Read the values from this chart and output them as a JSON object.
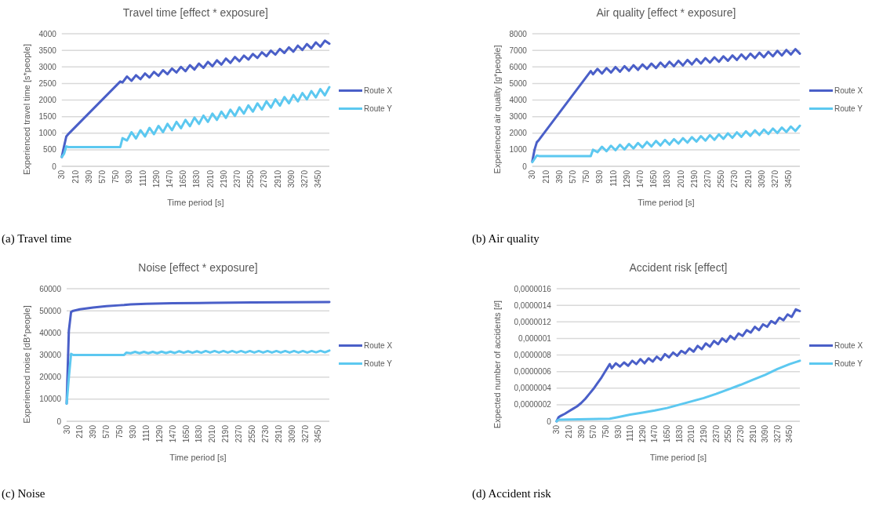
{
  "chart_data": [
    {
      "type": "line",
      "title": "Travel time [effect * exposure]",
      "xlabel": "Time period [s]",
      "ylabel": "Experienced travel time [s*people]",
      "annotations": [
        "(a) Travel time"
      ],
      "xlim": [
        30,
        3600
      ],
      "xticks": [
        30,
        210,
        390,
        570,
        750,
        930,
        1110,
        1290,
        1470,
        1650,
        1830,
        2010,
        2190,
        2370,
        2550,
        2730,
        2910,
        3090,
        3270,
        3450
      ],
      "ylim": [
        0,
        4000
      ],
      "yticks": [
        0,
        500,
        1000,
        1500,
        2000,
        2500,
        3000,
        3500,
        4000
      ],
      "grid": "y",
      "legend": "right",
      "series": [
        {
          "name": "Route X",
          "color": "#4a5fc8",
          "x": [
            30,
            60,
            90,
            120,
            810,
            840,
            900,
            960,
            1020,
            1080,
            1140,
            1200,
            1260,
            1320,
            1380,
            1440,
            1500,
            1560,
            1620,
            1680,
            1740,
            1800,
            1860,
            1920,
            1980,
            2040,
            2100,
            2160,
            2220,
            2280,
            2340,
            2400,
            2460,
            2520,
            2580,
            2640,
            2700,
            2760,
            2820,
            2880,
            2940,
            3000,
            3060,
            3120,
            3180,
            3240,
            3300,
            3360,
            3420,
            3480,
            3540,
            3600
          ],
          "values": [
            280,
            600,
            900,
            980,
            2560,
            2530,
            2710,
            2580,
            2750,
            2630,
            2800,
            2680,
            2850,
            2730,
            2900,
            2780,
            2950,
            2830,
            3000,
            2870,
            3050,
            2920,
            3100,
            2970,
            3150,
            3020,
            3200,
            3070,
            3250,
            3120,
            3300,
            3170,
            3340,
            3220,
            3390,
            3270,
            3440,
            3320,
            3490,
            3370,
            3540,
            3420,
            3590,
            3460,
            3640,
            3510,
            3690,
            3560,
            3740,
            3610,
            3790,
            3700
          ]
        },
        {
          "name": "Route Y",
          "color": "#5cc8f0",
          "x": [
            30,
            60,
            90,
            120,
            810,
            840,
            900,
            960,
            1020,
            1080,
            1140,
            1200,
            1260,
            1320,
            1380,
            1440,
            1500,
            1560,
            1620,
            1680,
            1740,
            1800,
            1860,
            1920,
            1980,
            2040,
            2100,
            2160,
            2220,
            2280,
            2340,
            2400,
            2460,
            2520,
            2580,
            2640,
            2700,
            2760,
            2820,
            2880,
            2940,
            3000,
            3060,
            3120,
            3180,
            3240,
            3300,
            3360,
            3420,
            3480,
            3540,
            3600
          ],
          "values": [
            280,
            380,
            600,
            580,
            580,
            850,
            780,
            1030,
            840,
            1090,
            900,
            1160,
            970,
            1220,
            1030,
            1280,
            1090,
            1340,
            1150,
            1400,
            1210,
            1470,
            1280,
            1530,
            1340,
            1590,
            1400,
            1650,
            1460,
            1710,
            1520,
            1780,
            1590,
            1840,
            1650,
            1900,
            1710,
            1960,
            1770,
            2020,
            1830,
            2090,
            1900,
            2150,
            1960,
            2210,
            2020,
            2270,
            2080,
            2330,
            2140,
            2390
          ]
        }
      ]
    },
    {
      "type": "line",
      "title": "Air quality [effect * exposure]",
      "xlabel": "Time period [s]",
      "ylabel": "Experienced air quality [g*people]",
      "annotations": [
        "(b) Air quality"
      ],
      "xlim": [
        30,
        3600
      ],
      "xticks": [
        30,
        210,
        390,
        570,
        750,
        930,
        1110,
        1290,
        1470,
        1650,
        1830,
        2010,
        2190,
        2370,
        2550,
        2730,
        2910,
        3090,
        3270,
        3450
      ],
      "ylim": [
        0,
        8000
      ],
      "yticks": [
        0,
        1000,
        2000,
        3000,
        4000,
        5000,
        6000,
        7000,
        8000
      ],
      "grid": "y",
      "legend": "right",
      "series": [
        {
          "name": "Route X",
          "color": "#4a5fc8",
          "x": [
            30,
            60,
            90,
            120,
            810,
            840,
            900,
            960,
            1020,
            1080,
            1140,
            1200,
            1260,
            1320,
            1380,
            1440,
            1500,
            1560,
            1620,
            1680,
            1740,
            1800,
            1860,
            1920,
            1980,
            2040,
            2100,
            2160,
            2220,
            2280,
            2340,
            2400,
            2460,
            2520,
            2580,
            2640,
            2700,
            2760,
            2820,
            2880,
            2940,
            3000,
            3060,
            3120,
            3180,
            3240,
            3300,
            3360,
            3420,
            3480,
            3540,
            3600
          ],
          "values": [
            300,
            1000,
            1450,
            1600,
            5750,
            5550,
            5880,
            5600,
            5930,
            5660,
            5990,
            5710,
            6040,
            5770,
            6100,
            5820,
            6150,
            5880,
            6200,
            5930,
            6260,
            5990,
            6310,
            6040,
            6370,
            6090,
            6420,
            6150,
            6480,
            6200,
            6530,
            6260,
            6580,
            6310,
            6640,
            6370,
            6690,
            6420,
            6750,
            6470,
            6800,
            6530,
            6860,
            6580,
            6910,
            6640,
            6970,
            6690,
            7020,
            6750,
            7070,
            6800
          ]
        },
        {
          "name": "Route Y",
          "color": "#5cc8f0",
          "x": [
            30,
            60,
            90,
            120,
            810,
            840,
            900,
            960,
            1020,
            1080,
            1140,
            1200,
            1260,
            1320,
            1380,
            1440,
            1500,
            1560,
            1620,
            1680,
            1740,
            1800,
            1860,
            1920,
            1980,
            2040,
            2100,
            2160,
            2220,
            2280,
            2340,
            2400,
            2460,
            2520,
            2580,
            2640,
            2700,
            2760,
            2820,
            2880,
            2940,
            3000,
            3060,
            3120,
            3180,
            3240,
            3300,
            3360,
            3420,
            3480,
            3540,
            3600
          ],
          "values": [
            250,
            450,
            650,
            620,
            620,
            1000,
            850,
            1180,
            910,
            1240,
            970,
            1300,
            1020,
            1350,
            1080,
            1410,
            1140,
            1470,
            1200,
            1530,
            1260,
            1590,
            1310,
            1640,
            1370,
            1700,
            1430,
            1760,
            1490,
            1820,
            1550,
            1880,
            1600,
            1930,
            1660,
            1990,
            1720,
            2050,
            1780,
            2110,
            1840,
            2170,
            1890,
            2220,
            1950,
            2280,
            2010,
            2340,
            2070,
            2400,
            2130,
            2450
          ]
        }
      ]
    },
    {
      "type": "line",
      "title": "Noise [effect * exposure]",
      "xlabel": "Time period [s]",
      "ylabel": "Experienced noise [dB*people]",
      "annotations": [
        "(c) Noise"
      ],
      "xlim": [
        30,
        3600
      ],
      "xticks": [
        30,
        210,
        390,
        570,
        750,
        930,
        1110,
        1290,
        1470,
        1650,
        1830,
        2010,
        2190,
        2370,
        2550,
        2730,
        2910,
        3090,
        3270,
        3450
      ],
      "ylim": [
        0,
        60000
      ],
      "yticks": [
        0,
        10000,
        20000,
        30000,
        40000,
        50000,
        60000
      ],
      "grid": "y",
      "legend": "right",
      "series": [
        {
          "name": "Route X",
          "color": "#4a5fc8",
          "x": [
            30,
            60,
            90,
            120,
            210,
            390,
            570,
            750,
            810,
            900,
            1110,
            1470,
            2010,
            2550,
            3090,
            3600
          ],
          "values": [
            8000,
            41000,
            49500,
            50000,
            50700,
            51500,
            52100,
            52500,
            52600,
            52900,
            53200,
            53400,
            53600,
            53800,
            53900,
            54000
          ]
        },
        {
          "name": "Route Y",
          "color": "#5cc8f0",
          "x": [
            30,
            60,
            90,
            120,
            810,
            840,
            900,
            960,
            1020,
            1080,
            1140,
            1200,
            1260,
            1320,
            1380,
            1440,
            1500,
            1560,
            1620,
            1680,
            1740,
            1800,
            1860,
            1920,
            1980,
            2040,
            2100,
            2160,
            2220,
            2280,
            2340,
            2400,
            2460,
            2520,
            2580,
            2640,
            2700,
            2760,
            2820,
            2880,
            2940,
            3000,
            3060,
            3120,
            3180,
            3240,
            3300,
            3360,
            3420,
            3480,
            3540,
            3600
          ],
          "values": [
            8000,
            20000,
            30500,
            30000,
            30000,
            31100,
            30800,
            31400,
            30800,
            31400,
            30800,
            31400,
            30800,
            31500,
            30900,
            31500,
            30900,
            31700,
            31000,
            31700,
            31000,
            31700,
            31000,
            31800,
            31100,
            31800,
            31100,
            31800,
            31100,
            31800,
            31100,
            31800,
            31100,
            31800,
            31100,
            31800,
            31100,
            31800,
            31100,
            31800,
            31100,
            31800,
            31100,
            31800,
            31100,
            31800,
            31100,
            31800,
            31200,
            31900,
            31200,
            32000
          ]
        }
      ]
    },
    {
      "type": "line",
      "title": "Accident risk [effect]",
      "xlabel": "Time period [s]",
      "ylabel": "Expected number of accidents [#]",
      "annotations": [
        "(d) Accident risk"
      ],
      "xlim": [
        30,
        3600
      ],
      "xticks": [
        30,
        210,
        390,
        570,
        750,
        930,
        1110,
        1290,
        1470,
        1650,
        1830,
        2010,
        2190,
        2370,
        2550,
        2730,
        2910,
        3090,
        3270,
        3450
      ],
      "ylim": [
        0,
        1.6e-06
      ],
      "yticks": [
        0,
        {
          "value": 2e-07,
          "label": "0,0000002"
        },
        {
          "value": 4e-07,
          "label": "0,0000004"
        },
        {
          "value": 6e-07,
          "label": "0,0000006"
        },
        {
          "value": 8e-07,
          "label": "0,0000008"
        },
        {
          "value": 1e-06,
          "label": "0,000001"
        },
        {
          "value": 1.2e-06,
          "label": "0,0000012"
        },
        {
          "value": 1.4e-06,
          "label": "0,0000014"
        },
        {
          "value": 1.6e-06,
          "label": "0,0000016"
        }
      ],
      "grid": "y",
      "legend": "right",
      "series": [
        {
          "name": "Route X",
          "color": "#4a5fc8",
          "x": [
            30,
            60,
            90,
            150,
            210,
            270,
            330,
            390,
            450,
            510,
            570,
            630,
            690,
            750,
            810,
            840,
            900,
            960,
            1020,
            1080,
            1140,
            1200,
            1260,
            1320,
            1380,
            1440,
            1500,
            1560,
            1620,
            1680,
            1740,
            1800,
            1860,
            1920,
            1980,
            2040,
            2100,
            2160,
            2220,
            2280,
            2340,
            2400,
            2460,
            2520,
            2580,
            2640,
            2700,
            2760,
            2820,
            2880,
            2940,
            3000,
            3060,
            3120,
            3180,
            3240,
            3300,
            3360,
            3420,
            3480,
            3540,
            3600
          ],
          "values": [
            0,
            5e-08,
            6.5e-08,
            9e-08,
            1.2e-07,
            1.5e-07,
            1.8e-07,
            2.2e-07,
            2.7e-07,
            3.3e-07,
            3.9e-07,
            4.6e-07,
            5.3e-07,
            6.1e-07,
            6.9e-07,
            6.4e-07,
            7e-07,
            6.6e-07,
            7.1e-07,
            6.7e-07,
            7.3e-07,
            6.9e-07,
            7.5e-07,
            7e-07,
            7.6e-07,
            7.2e-07,
            7.8e-07,
            7.4e-07,
            8.1e-07,
            7.7e-07,
            8.3e-07,
            7.9e-07,
            8.5e-07,
            8.2e-07,
            8.8e-07,
            8.4e-07,
            9.1e-07,
            8.7e-07,
            9.4e-07,
            9e-07,
            9.7e-07,
            9.3e-07,
            1e-06,
            9.6e-07,
            1.03e-06,
            9.9e-07,
            1.06e-06,
            1.03e-06,
            1.1e-06,
            1.07e-06,
            1.14e-06,
            1.1e-06,
            1.17e-06,
            1.14e-06,
            1.21e-06,
            1.18e-06,
            1.25e-06,
            1.22e-06,
            1.29e-06,
            1.26e-06,
            1.35e-06,
            1.33e-06
          ]
        },
        {
          "name": "Route Y",
          "color": "#5cc8f0",
          "x": [
            30,
            60,
            810,
            930,
            1110,
            1290,
            1470,
            1650,
            1830,
            2010,
            2190,
            2370,
            2550,
            2730,
            2910,
            3090,
            3270,
            3450,
            3600
          ],
          "values": [
            0,
            2e-08,
            3e-08,
            5e-08,
            8e-08,
            1.05e-07,
            1.3e-07,
            1.6e-07,
            2e-07,
            2.4e-07,
            2.8e-07,
            3.3e-07,
            3.85e-07,
            4.4e-07,
            5e-07,
            5.6e-07,
            6.3e-07,
            6.9e-07,
            7.3e-07
          ]
        }
      ]
    }
  ]
}
